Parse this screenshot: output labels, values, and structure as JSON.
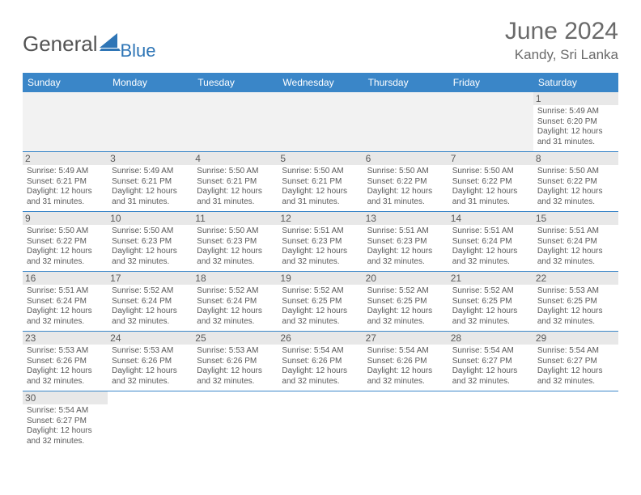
{
  "logo": {
    "general": "General",
    "blue": "Blue"
  },
  "title": "June 2024",
  "location": "Kandy, Sri Lanka",
  "colors": {
    "header_bar": "#3a86c8",
    "header_text": "#ffffff",
    "daynum_bg": "#e8e8e8",
    "blank_bg": "#f2f2f2",
    "week_border": "#3a86c8",
    "body_text": "#595959",
    "title_text": "#6a6a6a",
    "logo_blue": "#2e75b6"
  },
  "dow": [
    "Sunday",
    "Monday",
    "Tuesday",
    "Wednesday",
    "Thursday",
    "Friday",
    "Saturday"
  ],
  "weeks": [
    [
      null,
      null,
      null,
      null,
      null,
      null,
      {
        "n": "1",
        "sr": "Sunrise: 5:49 AM",
        "ss": "Sunset: 6:20 PM",
        "d1": "Daylight: 12 hours",
        "d2": "and 31 minutes."
      }
    ],
    [
      {
        "n": "2",
        "sr": "Sunrise: 5:49 AM",
        "ss": "Sunset: 6:21 PM",
        "d1": "Daylight: 12 hours",
        "d2": "and 31 minutes."
      },
      {
        "n": "3",
        "sr": "Sunrise: 5:49 AM",
        "ss": "Sunset: 6:21 PM",
        "d1": "Daylight: 12 hours",
        "d2": "and 31 minutes."
      },
      {
        "n": "4",
        "sr": "Sunrise: 5:50 AM",
        "ss": "Sunset: 6:21 PM",
        "d1": "Daylight: 12 hours",
        "d2": "and 31 minutes."
      },
      {
        "n": "5",
        "sr": "Sunrise: 5:50 AM",
        "ss": "Sunset: 6:21 PM",
        "d1": "Daylight: 12 hours",
        "d2": "and 31 minutes."
      },
      {
        "n": "6",
        "sr": "Sunrise: 5:50 AM",
        "ss": "Sunset: 6:22 PM",
        "d1": "Daylight: 12 hours",
        "d2": "and 31 minutes."
      },
      {
        "n": "7",
        "sr": "Sunrise: 5:50 AM",
        "ss": "Sunset: 6:22 PM",
        "d1": "Daylight: 12 hours",
        "d2": "and 31 minutes."
      },
      {
        "n": "8",
        "sr": "Sunrise: 5:50 AM",
        "ss": "Sunset: 6:22 PM",
        "d1": "Daylight: 12 hours",
        "d2": "and 32 minutes."
      }
    ],
    [
      {
        "n": "9",
        "sr": "Sunrise: 5:50 AM",
        "ss": "Sunset: 6:22 PM",
        "d1": "Daylight: 12 hours",
        "d2": "and 32 minutes."
      },
      {
        "n": "10",
        "sr": "Sunrise: 5:50 AM",
        "ss": "Sunset: 6:23 PM",
        "d1": "Daylight: 12 hours",
        "d2": "and 32 minutes."
      },
      {
        "n": "11",
        "sr": "Sunrise: 5:50 AM",
        "ss": "Sunset: 6:23 PM",
        "d1": "Daylight: 12 hours",
        "d2": "and 32 minutes."
      },
      {
        "n": "12",
        "sr": "Sunrise: 5:51 AM",
        "ss": "Sunset: 6:23 PM",
        "d1": "Daylight: 12 hours",
        "d2": "and 32 minutes."
      },
      {
        "n": "13",
        "sr": "Sunrise: 5:51 AM",
        "ss": "Sunset: 6:23 PM",
        "d1": "Daylight: 12 hours",
        "d2": "and 32 minutes."
      },
      {
        "n": "14",
        "sr": "Sunrise: 5:51 AM",
        "ss": "Sunset: 6:24 PM",
        "d1": "Daylight: 12 hours",
        "d2": "and 32 minutes."
      },
      {
        "n": "15",
        "sr": "Sunrise: 5:51 AM",
        "ss": "Sunset: 6:24 PM",
        "d1": "Daylight: 12 hours",
        "d2": "and 32 minutes."
      }
    ],
    [
      {
        "n": "16",
        "sr": "Sunrise: 5:51 AM",
        "ss": "Sunset: 6:24 PM",
        "d1": "Daylight: 12 hours",
        "d2": "and 32 minutes."
      },
      {
        "n": "17",
        "sr": "Sunrise: 5:52 AM",
        "ss": "Sunset: 6:24 PM",
        "d1": "Daylight: 12 hours",
        "d2": "and 32 minutes."
      },
      {
        "n": "18",
        "sr": "Sunrise: 5:52 AM",
        "ss": "Sunset: 6:24 PM",
        "d1": "Daylight: 12 hours",
        "d2": "and 32 minutes."
      },
      {
        "n": "19",
        "sr": "Sunrise: 5:52 AM",
        "ss": "Sunset: 6:25 PM",
        "d1": "Daylight: 12 hours",
        "d2": "and 32 minutes."
      },
      {
        "n": "20",
        "sr": "Sunrise: 5:52 AM",
        "ss": "Sunset: 6:25 PM",
        "d1": "Daylight: 12 hours",
        "d2": "and 32 minutes."
      },
      {
        "n": "21",
        "sr": "Sunrise: 5:52 AM",
        "ss": "Sunset: 6:25 PM",
        "d1": "Daylight: 12 hours",
        "d2": "and 32 minutes."
      },
      {
        "n": "22",
        "sr": "Sunrise: 5:53 AM",
        "ss": "Sunset: 6:25 PM",
        "d1": "Daylight: 12 hours",
        "d2": "and 32 minutes."
      }
    ],
    [
      {
        "n": "23",
        "sr": "Sunrise: 5:53 AM",
        "ss": "Sunset: 6:26 PM",
        "d1": "Daylight: 12 hours",
        "d2": "and 32 minutes."
      },
      {
        "n": "24",
        "sr": "Sunrise: 5:53 AM",
        "ss": "Sunset: 6:26 PM",
        "d1": "Daylight: 12 hours",
        "d2": "and 32 minutes."
      },
      {
        "n": "25",
        "sr": "Sunrise: 5:53 AM",
        "ss": "Sunset: 6:26 PM",
        "d1": "Daylight: 12 hours",
        "d2": "and 32 minutes."
      },
      {
        "n": "26",
        "sr": "Sunrise: 5:54 AM",
        "ss": "Sunset: 6:26 PM",
        "d1": "Daylight: 12 hours",
        "d2": "and 32 minutes."
      },
      {
        "n": "27",
        "sr": "Sunrise: 5:54 AM",
        "ss": "Sunset: 6:26 PM",
        "d1": "Daylight: 12 hours",
        "d2": "and 32 minutes."
      },
      {
        "n": "28",
        "sr": "Sunrise: 5:54 AM",
        "ss": "Sunset: 6:27 PM",
        "d1": "Daylight: 12 hours",
        "d2": "and 32 minutes."
      },
      {
        "n": "29",
        "sr": "Sunrise: 5:54 AM",
        "ss": "Sunset: 6:27 PM",
        "d1": "Daylight: 12 hours",
        "d2": "and 32 minutes."
      }
    ],
    [
      {
        "n": "30",
        "sr": "Sunrise: 5:54 AM",
        "ss": "Sunset: 6:27 PM",
        "d1": "Daylight: 12 hours",
        "d2": "and 32 minutes."
      },
      null,
      null,
      null,
      null,
      null,
      null
    ]
  ]
}
